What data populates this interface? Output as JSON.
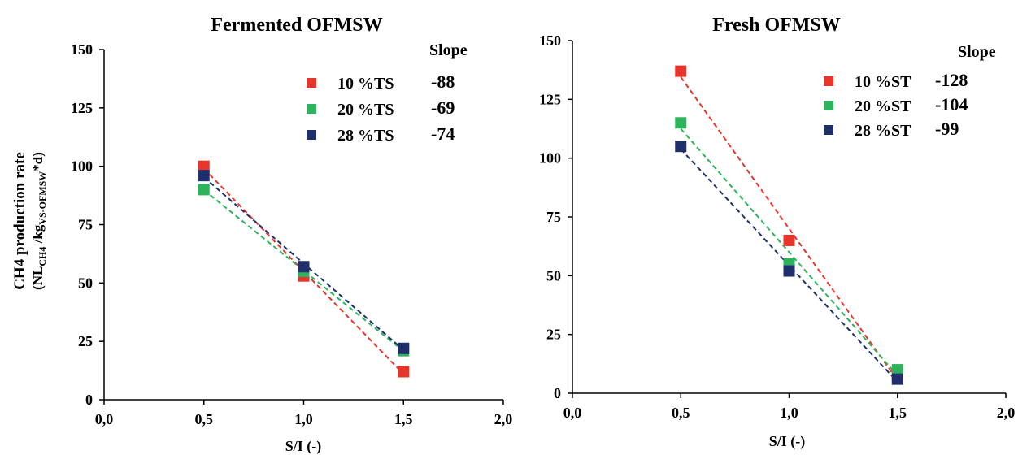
{
  "chart_data": [
    {
      "type": "scatter",
      "title": "Fermented OFMSW",
      "xlabel": "S/I (-)",
      "ylabel": "CH4 production rate",
      "ylabel_sub": "(NLCH4 /kgVS-OFMSW*d)",
      "xlim": [
        0,
        2
      ],
      "ylim": [
        0,
        150
      ],
      "xticks": [
        0,
        0.5,
        1,
        1.5,
        2
      ],
      "xtick_labels": [
        "0,0",
        "0,5",
        "1,0",
        "1,5",
        "2,0"
      ],
      "yticks": [
        0,
        25,
        50,
        75,
        100,
        125,
        150
      ],
      "ytick_labels": [
        "0",
        "25",
        "50",
        "75",
        "100",
        "125",
        "150"
      ],
      "grid": false,
      "legend_placement": "top-right",
      "slope_header": "Slope",
      "trendlines": "dashed linear fit per series",
      "series": [
        {
          "name": "10 %TS",
          "color": "#e8352b",
          "x": [
            0.5,
            1.0,
            1.5
          ],
          "y": [
            100,
            53,
            12
          ],
          "slope": "-88"
        },
        {
          "name": "20 %TS",
          "color": "#2db35c",
          "x": [
            0.5,
            1.0,
            1.5
          ],
          "y": [
            90,
            55,
            21
          ],
          "slope": "-69"
        },
        {
          "name": "28 %TS",
          "color": "#1f2f6b",
          "x": [
            0.5,
            1.0,
            1.5
          ],
          "y": [
            96,
            57,
            22
          ],
          "slope": "-74"
        }
      ]
    },
    {
      "type": "scatter",
      "title": "Fresh OFMSW",
      "xlabel": "S/I (-)",
      "ylabel": "",
      "xlim": [
        0,
        2
      ],
      "ylim": [
        0,
        150
      ],
      "xticks": [
        0,
        0.5,
        1,
        1.5,
        2
      ],
      "xtick_labels": [
        "0,0",
        "0,5",
        "1,0",
        "1,5",
        "2,0"
      ],
      "yticks": [
        0,
        25,
        50,
        75,
        100,
        125,
        150
      ],
      "ytick_labels": [
        "0",
        "25",
        "50",
        "75",
        "100",
        "125",
        "150"
      ],
      "grid": false,
      "legend_placement": "top-right",
      "slope_header": "Slope",
      "trendlines": "dashed linear fit per series",
      "series": [
        {
          "name": "10 %ST",
          "color": "#e8352b",
          "x": [
            0.5,
            1.0,
            1.5
          ],
          "y": [
            137,
            65,
            8
          ],
          "slope": "-128"
        },
        {
          "name": "20 %ST",
          "color": "#2db35c",
          "x": [
            0.5,
            1.0,
            1.5
          ],
          "y": [
            115,
            55,
            10
          ],
          "slope": "-104"
        },
        {
          "name": "28 %ST",
          "color": "#1f2f6b",
          "x": [
            0.5,
            1.0,
            1.5
          ],
          "y": [
            105,
            52,
            6
          ],
          "slope": "-99"
        }
      ]
    }
  ]
}
